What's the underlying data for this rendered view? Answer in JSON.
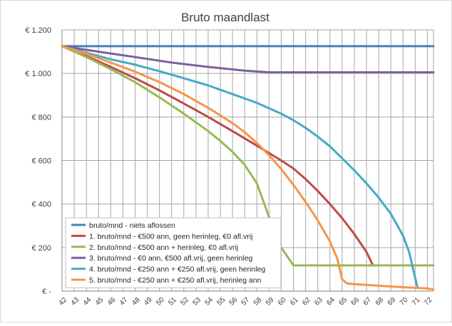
{
  "chart_data": {
    "type": "line",
    "title": "Bruto maandlast",
    "xlabel": "",
    "ylabel": "",
    "x": [
      42,
      43,
      44,
      45,
      46,
      47,
      48,
      49,
      50,
      51,
      52,
      53,
      54,
      55,
      56,
      57,
      58,
      59,
      60,
      61,
      62,
      63,
      64,
      65,
      66,
      67,
      68,
      69,
      70,
      71,
      72
    ],
    "xlim": [
      42,
      72.5
    ],
    "ylim": [
      0,
      1200
    ],
    "yticks": [
      0,
      200,
      400,
      600,
      800,
      1000,
      1200
    ],
    "ytick_labels": [
      "€ -",
      "€ 200",
      "€ 400",
      "€ 600",
      "€ 800",
      "€ 1.000",
      "€ 1.200"
    ],
    "grid": true,
    "legend_position": "bottom-left",
    "series": [
      {
        "name": "bruto/mnd - niets aflossen",
        "color": "#4a7ebb",
        "points": [
          [
            42,
            1125
          ],
          [
            72.5,
            1125
          ]
        ]
      },
      {
        "name": "1. bruto/mnd - €500 ann, geen herinleg, €0 afl.vrij",
        "color": "#be4b48",
        "points": [
          [
            42,
            1125
          ],
          [
            44,
            1080
          ],
          [
            46,
            1030
          ],
          [
            48,
            978
          ],
          [
            50,
            922
          ],
          [
            52,
            862
          ],
          [
            54,
            800
          ],
          [
            56,
            735
          ],
          [
            58,
            668
          ],
          [
            60,
            600
          ],
          [
            61,
            563
          ],
          [
            62,
            515
          ],
          [
            63,
            460
          ],
          [
            64,
            400
          ],
          [
            65,
            335
          ],
          [
            66,
            262
          ],
          [
            67,
            180
          ],
          [
            67.5,
            122
          ]
        ]
      },
      {
        "name": "2. bruto/mnd - €500 ann + herinleg, €0 afl.vrij",
        "color": "#98b954",
        "points": [
          [
            42,
            1125
          ],
          [
            44,
            1075
          ],
          [
            46,
            1020
          ],
          [
            48,
            960
          ],
          [
            50,
            890
          ],
          [
            52,
            815
          ],
          [
            54,
            735
          ],
          [
            55,
            690
          ],
          [
            56,
            640
          ],
          [
            57,
            580
          ],
          [
            58,
            495
          ],
          [
            59,
            340
          ],
          [
            60,
            200
          ],
          [
            61,
            118
          ],
          [
            72.5,
            118
          ]
        ]
      },
      {
        "name": "3. bruto/mnd - €0 ann, €500 afl.vrij, geen herinleg",
        "color": "#7d5fa0",
        "points": [
          [
            42,
            1125
          ],
          [
            45,
            1100
          ],
          [
            48,
            1075
          ],
          [
            51,
            1050
          ],
          [
            54,
            1030
          ],
          [
            57,
            1013
          ],
          [
            59,
            1005
          ],
          [
            72.5,
            1005
          ]
        ]
      },
      {
        "name": "4. bruto/mnd - €250 ann + €250 afl.vrij, geen herinleg",
        "color": "#46aac4",
        "points": [
          [
            42,
            1125
          ],
          [
            44,
            1095
          ],
          [
            46,
            1065
          ],
          [
            48,
            1040
          ],
          [
            50,
            1010
          ],
          [
            52,
            978
          ],
          [
            54,
            945
          ],
          [
            56,
            905
          ],
          [
            58,
            865
          ],
          [
            60,
            815
          ],
          [
            61,
            785
          ],
          [
            62,
            750
          ],
          [
            63,
            710
          ],
          [
            64,
            665
          ],
          [
            65,
            610
          ],
          [
            66,
            555
          ],
          [
            67,
            495
          ],
          [
            68,
            430
          ],
          [
            69,
            355
          ],
          [
            70,
            255
          ],
          [
            70.5,
            180
          ],
          [
            71,
            60
          ],
          [
            71.2,
            15
          ]
        ]
      },
      {
        "name": "5. bruto/mnd - €250 ann + €250 afl.vrij, herinleg ann",
        "color": "#f69546",
        "points": [
          [
            42,
            1125
          ],
          [
            44,
            1090
          ],
          [
            46,
            1050
          ],
          [
            48,
            1008
          ],
          [
            50,
            960
          ],
          [
            52,
            905
          ],
          [
            54,
            842
          ],
          [
            56,
            772
          ],
          [
            57,
            730
          ],
          [
            58,
            680
          ],
          [
            59,
            625
          ],
          [
            60,
            560
          ],
          [
            61,
            488
          ],
          [
            62,
            410
          ],
          [
            63,
            325
          ],
          [
            64,
            228
          ],
          [
            64.6,
            150
          ],
          [
            65,
            55
          ],
          [
            65.4,
            35
          ],
          [
            66,
            32
          ],
          [
            68,
            25
          ],
          [
            70,
            18
          ],
          [
            72,
            12
          ],
          [
            72.5,
            8
          ]
        ]
      }
    ]
  }
}
